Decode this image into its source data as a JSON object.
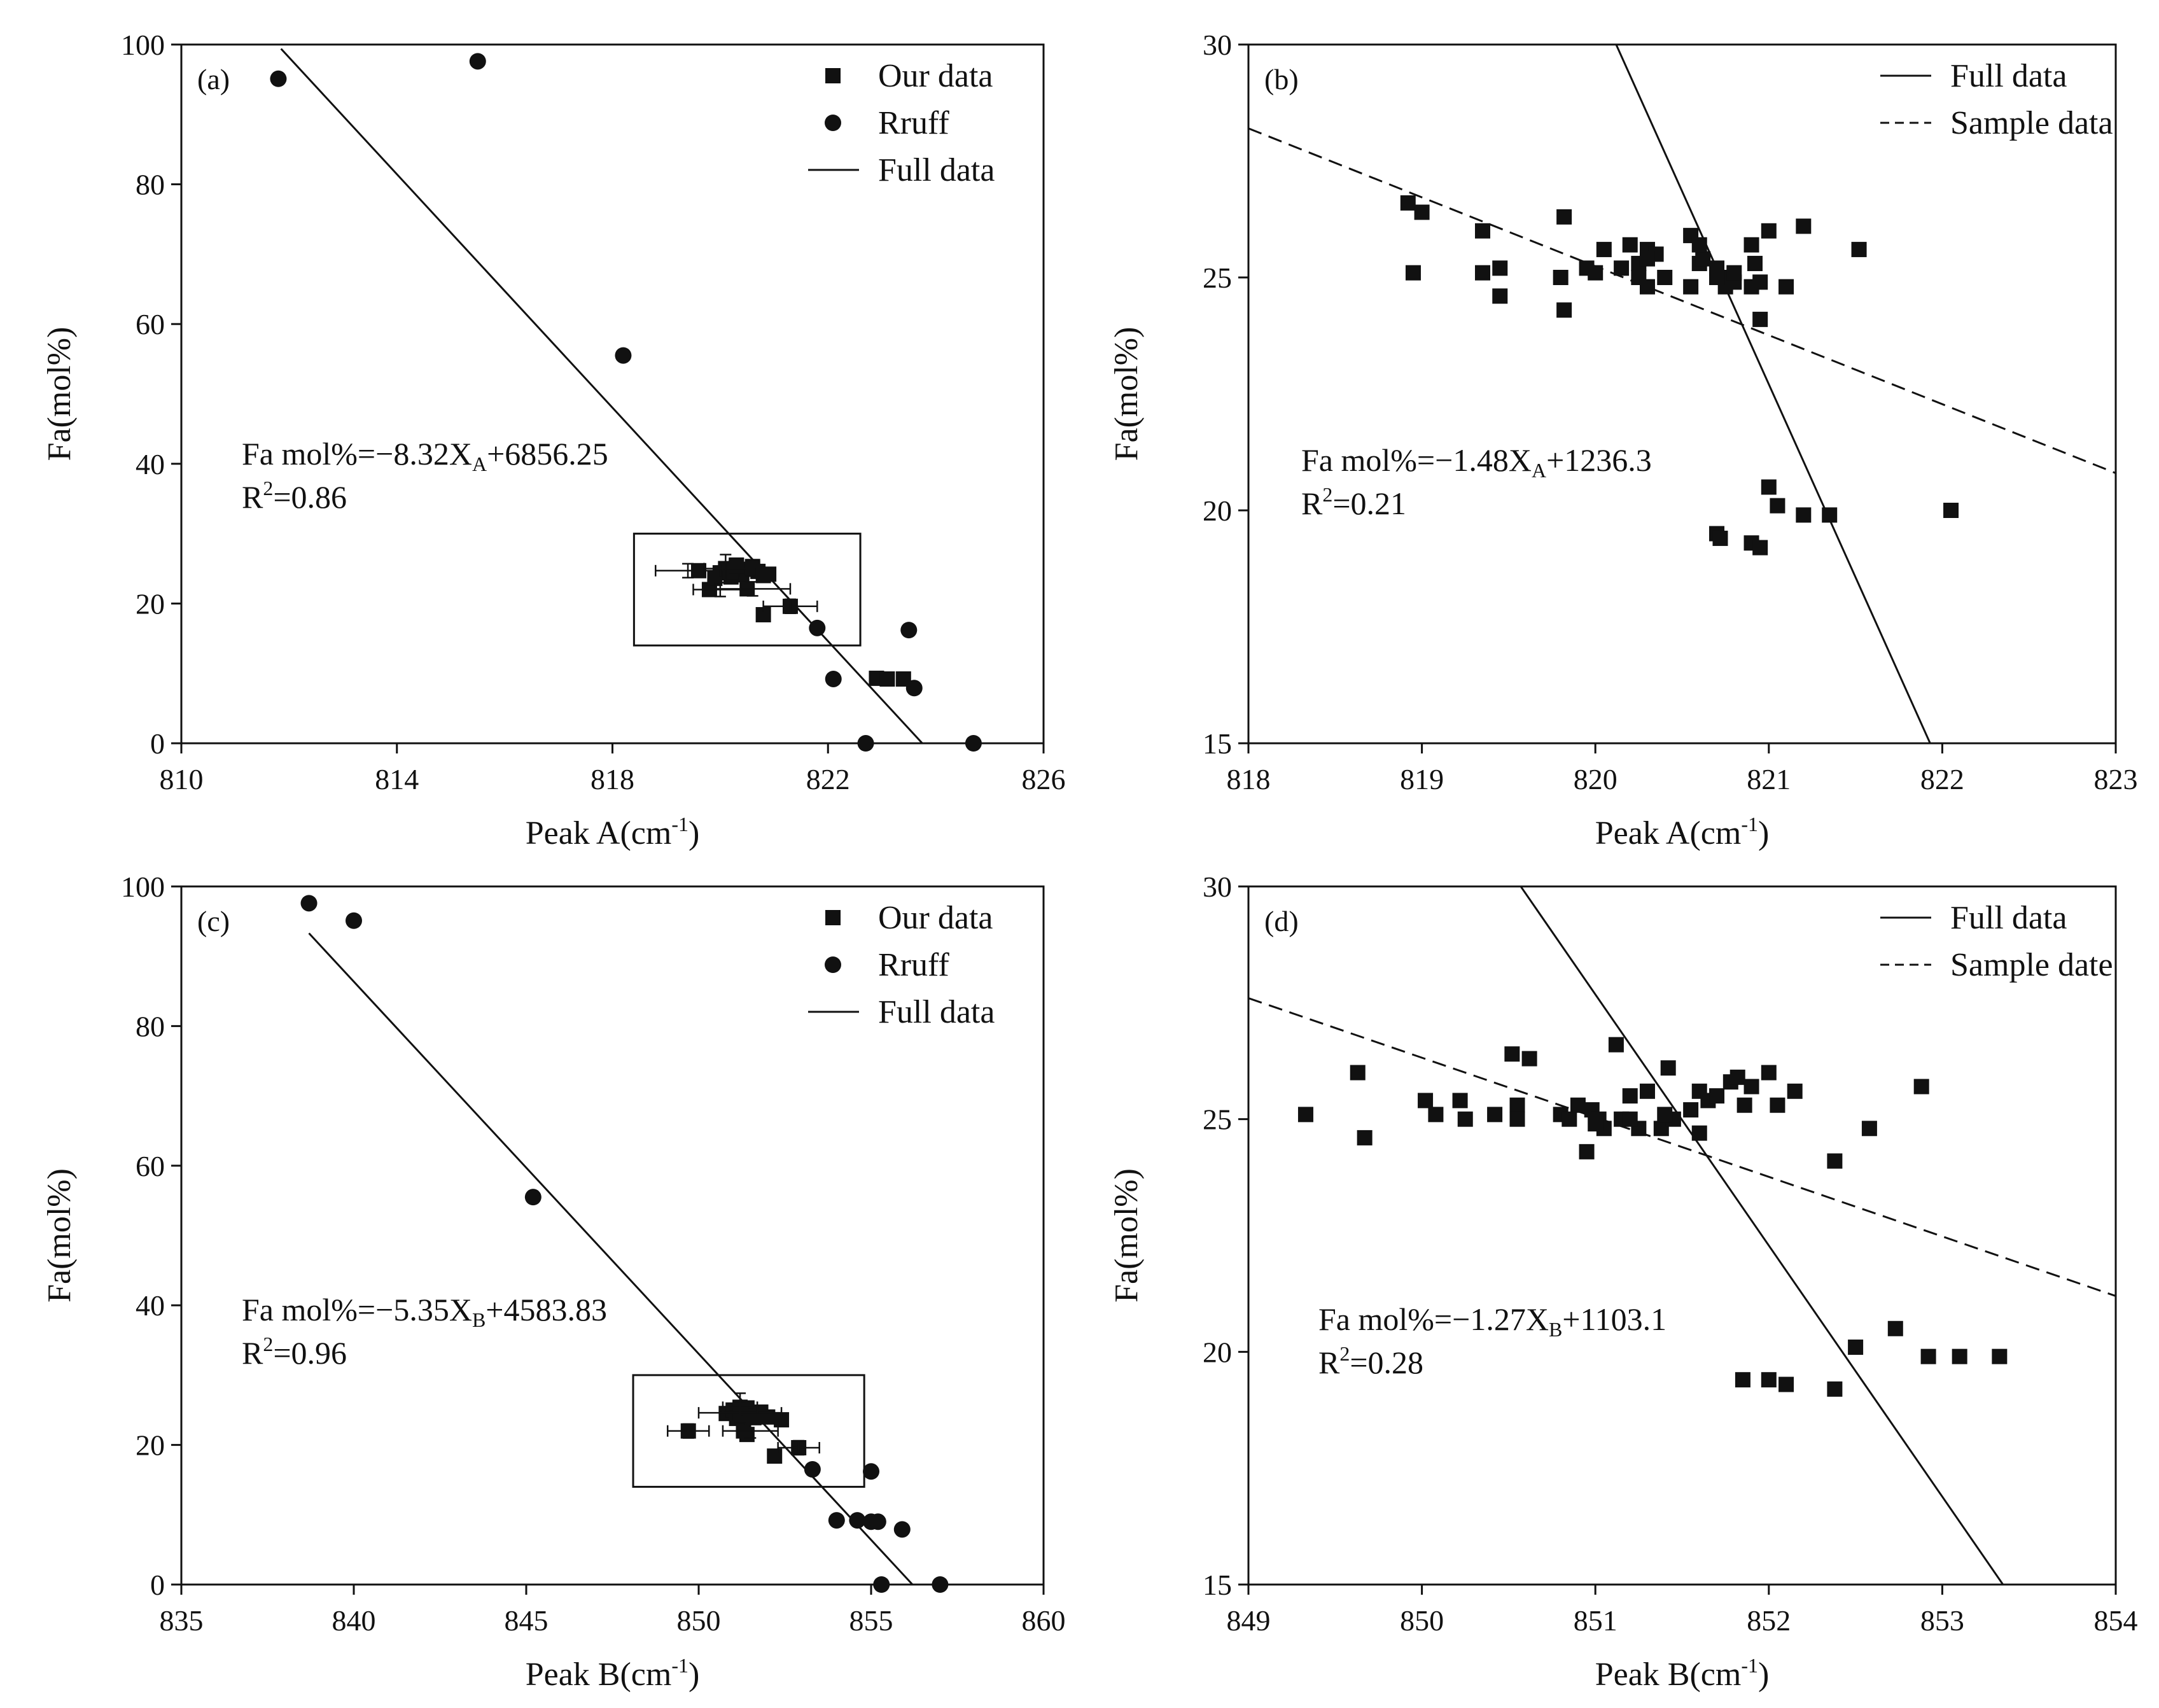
{
  "chart_data": [
    {
      "id": "a",
      "type": "scatter",
      "panel_label": "(a)",
      "xlabel": "Peak A(cm",
      "xlabel_sup": "-1",
      "xlabel_close": ")",
      "ylabel": "Fa(mol%)",
      "xlim": [
        810,
        826
      ],
      "ylim": [
        0,
        100
      ],
      "xticks": [
        810,
        814,
        818,
        822,
        826
      ],
      "yticks": [
        0,
        20,
        40,
        60,
        80,
        100
      ],
      "legend": {
        "position": "top-right",
        "entries": [
          {
            "marker": "square",
            "label": "Our  data"
          },
          {
            "marker": "circle",
            "label": "Rruff"
          },
          {
            "marker": "solid",
            "label": "Full data"
          }
        ]
      },
      "equation": {
        "prefix": "Fa mol%=−8.32X",
        "sub": "A",
        "suffix": "+6856.25",
        "r2_prefix": "R",
        "r2_sup": "2",
        "r2_value": "=0.86"
      },
      "box": {
        "x0": 818.4,
        "x1": 822.6,
        "y0": 14,
        "y1": 30
      },
      "lines": [
        {
          "name": "Full data",
          "style": "solid",
          "x": [
            811.85,
            823.75
          ],
          "y": [
            99.4,
            0
          ]
        }
      ],
      "series": [
        {
          "name": "Rruff",
          "marker": "circle",
          "x": [
            811.8,
            815.5,
            818.2,
            821.8,
            822.1,
            822.7,
            823.5,
            823.6,
            824.7
          ],
          "y": [
            95.1,
            97.6,
            55.5,
            16.5,
            9.2,
            0,
            16.2,
            7.9,
            0
          ]
        },
        {
          "name": "Our data",
          "marker": "square",
          "x": [
            819.6,
            819.8,
            820.0,
            820.1,
            820.2,
            820.3,
            820.4,
            820.5,
            820.6,
            820.7,
            820.8,
            820.9,
            820.2,
            820.5,
            820.6,
            819.9,
            820.3,
            820.8,
            821.3,
            822.9,
            823.1,
            823.4
          ],
          "y": [
            24.7,
            22.0,
            24.4,
            25.0,
            23.8,
            25.5,
            24.1,
            22.1,
            25.3,
            24.6,
            18.4,
            24.2,
            24.5,
            24.9,
            25.1,
            23.6,
            25.4,
            24.0,
            19.6,
            9.3,
            9.2,
            9.2
          ]
        },
        {
          "name": "Error bars",
          "marker": "errorbar",
          "x": [
            819.4,
            820.0,
            820.6,
            821.3,
            820.1
          ],
          "y": [
            24.7,
            22.0,
            22.1,
            19.6,
            25.0
          ],
          "xerr": [
            0.6,
            0.5,
            0.7,
            0.5,
            0.4
          ],
          "yerr": [
            1.0,
            1.0,
            1.0,
            1.0,
            2.0
          ]
        }
      ]
    },
    {
      "id": "b",
      "type": "scatter",
      "panel_label": "(b)",
      "xlabel": "Peak A(cm",
      "xlabel_sup": "-1",
      "xlabel_close": ")",
      "ylabel": "Fa(mol%)",
      "xlim": [
        818,
        823
      ],
      "ylim": [
        15,
        30
      ],
      "xticks": [
        818,
        819,
        820,
        821,
        822,
        823
      ],
      "yticks": [
        15,
        20,
        25,
        30
      ],
      "legend": {
        "position": "top-right",
        "entries": [
          {
            "marker": "solid",
            "label": "Full data"
          },
          {
            "marker": "dashed",
            "label": "Sample data"
          }
        ]
      },
      "equation": {
        "prefix": "Fa mol%=−1.48X",
        "sub": "A",
        "suffix": "+1236.3",
        "r2_prefix": "R",
        "r2_sup": "2",
        "r2_value": "=0.21"
      },
      "lines": [
        {
          "name": "Full data",
          "style": "solid",
          "x": [
            820.12,
            821.93
          ],
          "y": [
            30,
            15
          ]
        },
        {
          "name": "Sample data",
          "style": "dashed",
          "x": [
            818,
            823
          ],
          "y": [
            28.2,
            20.8
          ]
        }
      ],
      "series": [
        {
          "name": "Our data",
          "marker": "square",
          "x": [
            818.92,
            819.0,
            818.95,
            819.35,
            819.45,
            819.35,
            819.45,
            819.82,
            819.95,
            819.8,
            819.82,
            820.0,
            820.05,
            820.15,
            820.2,
            820.25,
            820.3,
            820.35,
            820.25,
            820.3,
            820.4,
            820.55,
            820.6,
            820.62,
            820.7,
            820.75,
            820.8,
            820.75,
            820.55,
            820.9,
            820.95,
            820.92,
            821.0,
            820.9,
            821.1,
            820.95,
            821.2,
            821.52,
            820.3,
            820.6,
            820.8,
            820.7,
            821.0,
            821.05,
            821.2,
            821.35,
            822.05,
            820.7,
            820.72,
            820.9,
            820.95
          ],
          "y": [
            26.6,
            26.4,
            25.1,
            26.0,
            25.2,
            25.1,
            24.6,
            26.3,
            25.2,
            25.0,
            24.3,
            25.1,
            25.6,
            25.2,
            25.7,
            25.3,
            25.6,
            25.5,
            25.0,
            24.8,
            25.0,
            25.9,
            25.3,
            25.4,
            25.2,
            25.0,
            24.9,
            24.8,
            24.8,
            25.7,
            24.9,
            25.3,
            26.0,
            24.8,
            24.8,
            24.1,
            26.1,
            25.6,
            25.4,
            25.7,
            25.1,
            25.0,
            20.5,
            20.1,
            19.9,
            19.9,
            20.0,
            19.5,
            19.4,
            19.3,
            19.2
          ]
        }
      ]
    },
    {
      "id": "c",
      "type": "scatter",
      "panel_label": "(c)",
      "xlabel": "Peak B(cm",
      "xlabel_sup": "-1",
      "xlabel_close": ")",
      "ylabel": "Fa(mol%)",
      "xlim": [
        835,
        860
      ],
      "ylim": [
        0,
        100
      ],
      "xticks": [
        835,
        840,
        845,
        850,
        855,
        860
      ],
      "yticks": [
        0,
        20,
        40,
        60,
        80,
        100
      ],
      "legend": {
        "position": "top-right",
        "entries": [
          {
            "marker": "square",
            "label": "Our  data"
          },
          {
            "marker": "circle",
            "label": "Rruff"
          },
          {
            "marker": "solid",
            "label": "Full data"
          }
        ]
      },
      "equation": {
        "prefix": "Fa mol%=−5.35X",
        "sub": "B",
        "suffix": "+4583.83",
        "r2_prefix": "R",
        "r2_sup": "2",
        "r2_value": "=0.96"
      },
      "box": {
        "x0": 848.1,
        "x1": 854.8,
        "y0": 14,
        "y1": 30
      },
      "lines": [
        {
          "name": "Full data",
          "style": "solid",
          "x": [
            838.7,
            856.2
          ],
          "y": [
            93.3,
            0
          ]
        }
      ],
      "series": [
        {
          "name": "Rruff",
          "marker": "circle",
          "x": [
            838.7,
            840.0,
            845.2,
            853.3,
            854.0,
            854.6,
            855.0,
            855.2,
            855.0,
            855.3,
            855.9,
            857.0
          ],
          "y": [
            97.6,
            95.1,
            55.5,
            16.5,
            9.2,
            9.2,
            9.0,
            9.0,
            16.2,
            0,
            7.9,
            0
          ]
        },
        {
          "name": "Our data",
          "marker": "square",
          "x": [
            849.7,
            850.8,
            851.0,
            851.1,
            851.2,
            851.3,
            851.4,
            851.5,
            851.6,
            851.8,
            852.0,
            852.2,
            852.4,
            852.9,
            851.2,
            851.4
          ],
          "y": [
            22.0,
            24.5,
            25.0,
            23.8,
            24.6,
            22.0,
            25.3,
            24.1,
            23.9,
            24.7,
            24.0,
            18.4,
            23.6,
            19.6,
            25.4,
            21.5
          ]
        },
        {
          "name": "Error bars",
          "marker": "errorbar",
          "x": [
            849.7,
            851.2,
            851.5,
            852.9,
            851.2
          ],
          "y": [
            22.0,
            24.6,
            22.0,
            19.6,
            25.4
          ],
          "xerr": [
            0.6,
            1.2,
            0.8,
            0.6,
            0.5
          ],
          "yerr": [
            1.0,
            1.5,
            1.0,
            1.0,
            2.0
          ]
        }
      ]
    },
    {
      "id": "d",
      "type": "scatter",
      "panel_label": "(d)",
      "xlabel": "Peak B(cm",
      "xlabel_sup": "-1",
      "xlabel_close": ")",
      "ylabel": "Fa(mol%)",
      "xlim": [
        849,
        854
      ],
      "ylim": [
        15,
        30
      ],
      "xticks": [
        849,
        850,
        851,
        852,
        853,
        854
      ],
      "yticks": [
        15,
        20,
        25,
        30
      ],
      "legend": {
        "position": "top-right",
        "entries": [
          {
            "marker": "solid",
            "label": "Full data"
          },
          {
            "marker": "dashed",
            "label": "Sample date"
          }
        ]
      },
      "equation": {
        "prefix": "Fa mol%=−1.27X",
        "sub": "B",
        "suffix": "+1103.1",
        "r2_prefix": "R",
        "r2_sup": "2",
        "r2_value": "=0.28"
      },
      "lines": [
        {
          "name": "Full data",
          "style": "solid",
          "x": [
            850.57,
            853.35
          ],
          "y": [
            30,
            15
          ]
        },
        {
          "name": "Sample date",
          "style": "dashed",
          "x": [
            849,
            854
          ],
          "y": [
            27.6,
            21.2
          ]
        }
      ],
      "series": [
        {
          "name": "Our data",
          "marker": "square",
          "x": [
            849.33,
            849.63,
            849.67,
            850.02,
            850.08,
            850.22,
            850.25,
            850.42,
            850.52,
            850.55,
            850.62,
            850.55,
            850.8,
            850.85,
            850.9,
            850.95,
            850.98,
            851.02,
            851.05,
            851.12,
            851.15,
            851.2,
            851.25,
            851.3,
            851.38,
            851.42,
            851.45,
            851.55,
            851.6,
            851.65,
            851.7,
            851.78,
            851.82,
            851.86,
            851.9,
            852.0,
            852.05,
            852.15,
            852.38,
            852.58,
            852.88,
            851.6,
            851.4,
            851.2,
            851.0,
            851.85,
            852.0,
            852.1,
            852.38,
            852.5,
            852.73,
            852.92,
            853.1,
            853.33
          ],
          "y": [
            25.1,
            26.0,
            24.6,
            25.4,
            25.1,
            25.4,
            25.0,
            25.1,
            26.4,
            25.3,
            26.3,
            25.0,
            25.1,
            25.0,
            25.3,
            24.3,
            25.2,
            25.0,
            24.8,
            26.6,
            25.0,
            25.5,
            24.8,
            25.6,
            24.8,
            26.1,
            25.0,
            25.2,
            25.6,
            25.4,
            25.5,
            25.8,
            25.9,
            25.3,
            25.7,
            26.0,
            25.3,
            25.6,
            24.1,
            24.8,
            25.7,
            24.7,
            25.1,
            25.0,
            24.9,
            19.4,
            19.4,
            19.3,
            19.2,
            20.1,
            20.5,
            19.9,
            19.9,
            19.9
          ]
        }
      ]
    }
  ]
}
